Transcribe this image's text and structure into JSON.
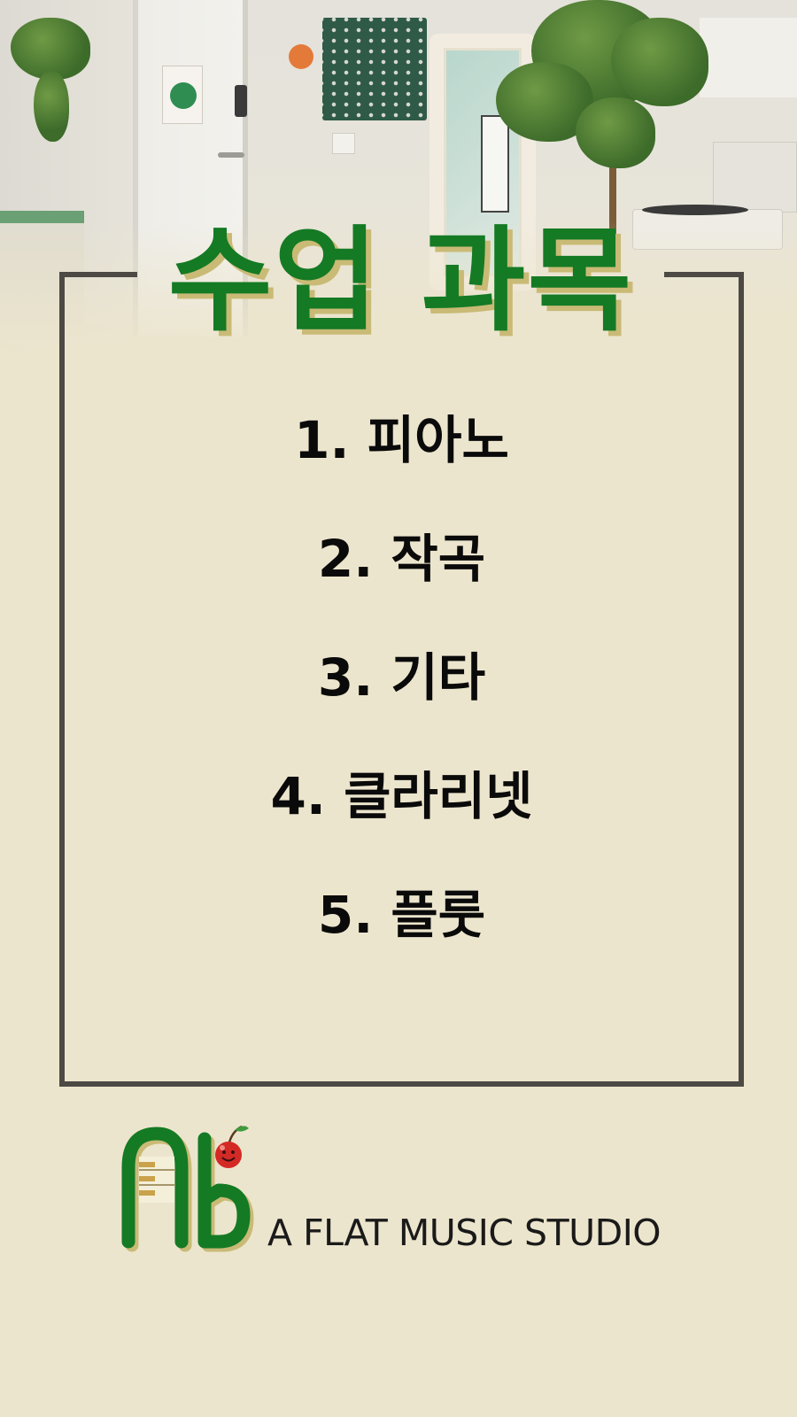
{
  "title": "수업 과목",
  "subjects": [
    "1. 피아노",
    "2. 작곡",
    "3. 기타",
    "4. 클라리넷",
    "5. 플룻"
  ],
  "brand": {
    "logo_mark": "Ab",
    "name": "A FLAT MUSIC STUDIO"
  },
  "colors": {
    "title_green": "#147a24",
    "title_shadow": "#c9ba76",
    "frame": "#4d4a45",
    "background": "#ece5cd",
    "cherry_red": "#d42a26"
  },
  "icons": [
    "cherry-icon",
    "piano-keys-icon"
  ]
}
